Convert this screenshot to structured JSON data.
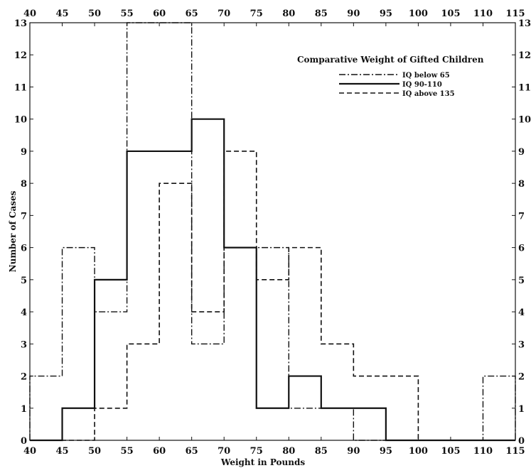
{
  "chart_data": {
    "type": "line",
    "title": "Comparative Weight of Gifted Children",
    "xlabel": "Weight in Pounds",
    "ylabel": "Number of Cases",
    "xlim": [
      40,
      115
    ],
    "ylim": [
      0,
      13
    ],
    "xticks": [
      40,
      45,
      50,
      55,
      60,
      65,
      70,
      75,
      80,
      85,
      90,
      95,
      100,
      105,
      110,
      115
    ],
    "xtick_labels": [
      "40",
      "45",
      "50",
      "55",
      "60",
      "65",
      "70",
      "75",
      "80",
      "85",
      "90",
      "95",
      "100",
      "105",
      "110",
      "115"
    ],
    "yticks": [
      0,
      1,
      2,
      3,
      4,
      5,
      6,
      7,
      8,
      9,
      10,
      11,
      12,
      13
    ],
    "legend_position": "top-right",
    "grid": false,
    "series": [
      {
        "name": "IQ below 65",
        "style": "dash-dot",
        "bin_edges": [
          40,
          45,
          50,
          55,
          60,
          65,
          70,
          75,
          80,
          85,
          90,
          95,
          100,
          105,
          110,
          115
        ],
        "values": [
          2,
          6,
          4,
          13,
          13,
          3,
          6,
          6,
          1,
          1,
          0,
          0,
          0,
          0,
          2
        ]
      },
      {
        "name": "IQ 90-110",
        "style": "solid",
        "bin_edges": [
          40,
          45,
          50,
          55,
          60,
          65,
          70,
          75,
          80,
          85,
          90,
          95,
          100,
          105,
          110,
          115
        ],
        "values": [
          0,
          1,
          5,
          9,
          9,
          10,
          6,
          1,
          2,
          1,
          1,
          0,
          0,
          0,
          0
        ]
      },
      {
        "name": "IQ above 135",
        "style": "dashed",
        "bin_edges": [
          40,
          45,
          50,
          55,
          60,
          65,
          70,
          75,
          80,
          85,
          90,
          95,
          100,
          105,
          110,
          115
        ],
        "values": [
          0,
          0,
          1,
          3,
          8,
          4,
          9,
          5,
          6,
          3,
          2,
          2,
          0,
          0,
          0
        ]
      }
    ]
  }
}
